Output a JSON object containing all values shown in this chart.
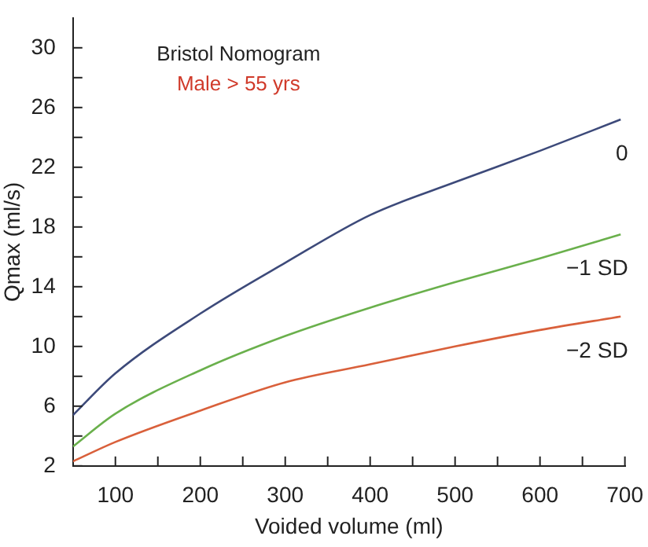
{
  "chart_data": {
    "type": "line",
    "title": "Bristol Nomogram",
    "subtitle": "Male > 55 yrs",
    "xlabel": "Voided volume (ml)",
    "ylabel": "Qmax (ml/s)",
    "xlim": [
      50,
      700
    ],
    "xticks": [
      {
        "value": 100,
        "label": "100"
      },
      {
        "value": 150,
        "label": null
      },
      {
        "value": 200,
        "label": "200"
      },
      {
        "value": 250,
        "label": null
      },
      {
        "value": 300,
        "label": "300"
      },
      {
        "value": 350,
        "label": null
      },
      {
        "value": 400,
        "label": "400"
      },
      {
        "value": 450,
        "label": null
      },
      {
        "value": 500,
        "label": "500"
      },
      {
        "value": 550,
        "label": null
      },
      {
        "value": 600,
        "label": "600"
      },
      {
        "value": 650,
        "label": null
      },
      {
        "value": 700,
        "label": "700"
      }
    ],
    "ylim": [
      2,
      32
    ],
    "yticks": [
      2,
      {
        "value": 4,
        "label": null
      },
      6,
      {
        "value": 8,
        "label": null
      },
      10,
      {
        "value": 12,
        "label": null
      },
      14,
      {
        "value": 16,
        "label": null
      },
      18,
      {
        "value": 20,
        "label": null
      },
      22,
      {
        "value": 24,
        "label": null
      },
      26,
      {
        "value": 28,
        "label": null
      },
      30
    ],
    "x": [
      50,
      100,
      200,
      300,
      400,
      500,
      600,
      695
    ],
    "series": [
      {
        "name": "0",
        "color": "#3d4a7a",
        "values": [
          5.4,
          8.2,
          12.2,
          15.6,
          18.8,
          21.0,
          23.1,
          25.2
        ]
      },
      {
        "name": "−1 SD",
        "color": "#6ab04c",
        "values": [
          3.3,
          5.5,
          8.4,
          10.7,
          12.6,
          14.3,
          15.9,
          17.5
        ]
      },
      {
        "name": "−2 SD",
        "color": "#d9603b",
        "values": [
          2.3,
          3.6,
          5.7,
          7.6,
          8.8,
          10.0,
          11.1,
          12.0
        ]
      }
    ],
    "marker": "none",
    "line_style": "solid"
  }
}
